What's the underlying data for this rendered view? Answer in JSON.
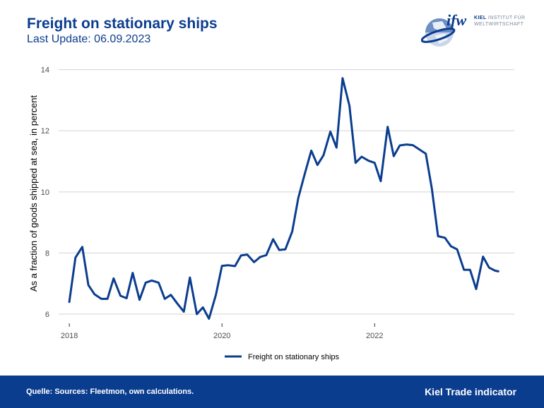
{
  "header": {
    "title": "Freight on stationary ships",
    "subtitle": "Last Update: 06.09.2023"
  },
  "logo": {
    "mark": "ifw",
    "line1_bold": "KIEL",
    "line1_rest": " INSTITUT FÜR",
    "line2": "WELTWIRTSCHAFT"
  },
  "footer": {
    "source": "Quelle: Sources: Fleetmon, own calculations.",
    "brand": "Kiel Trade indicator"
  },
  "colors": {
    "series": "#0b3d8f",
    "grid": "#d3d3d3",
    "tick_text": "#4d4d4d"
  },
  "chart_data": {
    "type": "line",
    "title": "Freight on stationary ships",
    "xlabel": "",
    "ylabel": "As a fraction of goods shipped at sea, in percent",
    "xlim": [
      2017.86,
      2023.83
    ],
    "ylim": [
      5.7,
      14.2
    ],
    "x_ticks": [
      2018,
      2020,
      2022
    ],
    "x_tick_labels": [
      "2018",
      "2020",
      "2022"
    ],
    "y_ticks": [
      6,
      8,
      10,
      12,
      14
    ],
    "y_tick_labels": [
      "6",
      "8",
      "10",
      "12",
      "14"
    ],
    "grid": "horizontal",
    "legend": "bottom-center",
    "series": [
      {
        "name": "Freight on stationary ships",
        "x": [
          2018.0,
          2018.08,
          2018.17,
          2018.25,
          2018.33,
          2018.42,
          2018.5,
          2018.58,
          2018.67,
          2018.75,
          2018.83,
          2018.92,
          2019.0,
          2019.08,
          2019.17,
          2019.25,
          2019.33,
          2019.42,
          2019.5,
          2019.58,
          2019.67,
          2019.75,
          2019.83,
          2019.92,
          2020.0,
          2020.08,
          2020.17,
          2020.25,
          2020.33,
          2020.42,
          2020.5,
          2020.58,
          2020.67,
          2020.75,
          2020.83,
          2020.92,
          2021.0,
          2021.08,
          2021.17,
          2021.25,
          2021.33,
          2021.42,
          2021.5,
          2021.58,
          2021.67,
          2021.75,
          2021.83,
          2021.92,
          2022.0,
          2022.08,
          2022.17,
          2022.25,
          2022.33,
          2022.42,
          2022.5,
          2022.58,
          2022.67,
          2022.75,
          2022.83,
          2022.92,
          2023.0,
          2023.08,
          2023.17,
          2023.25,
          2023.33,
          2023.42,
          2023.5,
          2023.58,
          2023.62
        ],
        "values": [
          6.4,
          7.85,
          8.2,
          6.95,
          6.65,
          6.5,
          6.5,
          7.17,
          6.6,
          6.52,
          7.35,
          6.47,
          7.03,
          7.1,
          7.03,
          6.5,
          6.63,
          6.33,
          6.08,
          7.2,
          6.0,
          6.22,
          5.85,
          6.63,
          7.58,
          7.6,
          7.57,
          7.92,
          7.95,
          7.7,
          7.87,
          7.93,
          8.45,
          8.1,
          8.12,
          8.7,
          9.8,
          10.55,
          11.35,
          10.88,
          11.2,
          11.97,
          11.45,
          13.72,
          12.82,
          10.95,
          11.15,
          11.02,
          10.95,
          10.35,
          12.13,
          11.17,
          11.52,
          11.55,
          11.53,
          11.4,
          11.25,
          10.1,
          8.55,
          8.5,
          8.22,
          8.12,
          7.45,
          7.45,
          6.82,
          7.88,
          7.52,
          7.42,
          7.4
        ]
      }
    ]
  }
}
